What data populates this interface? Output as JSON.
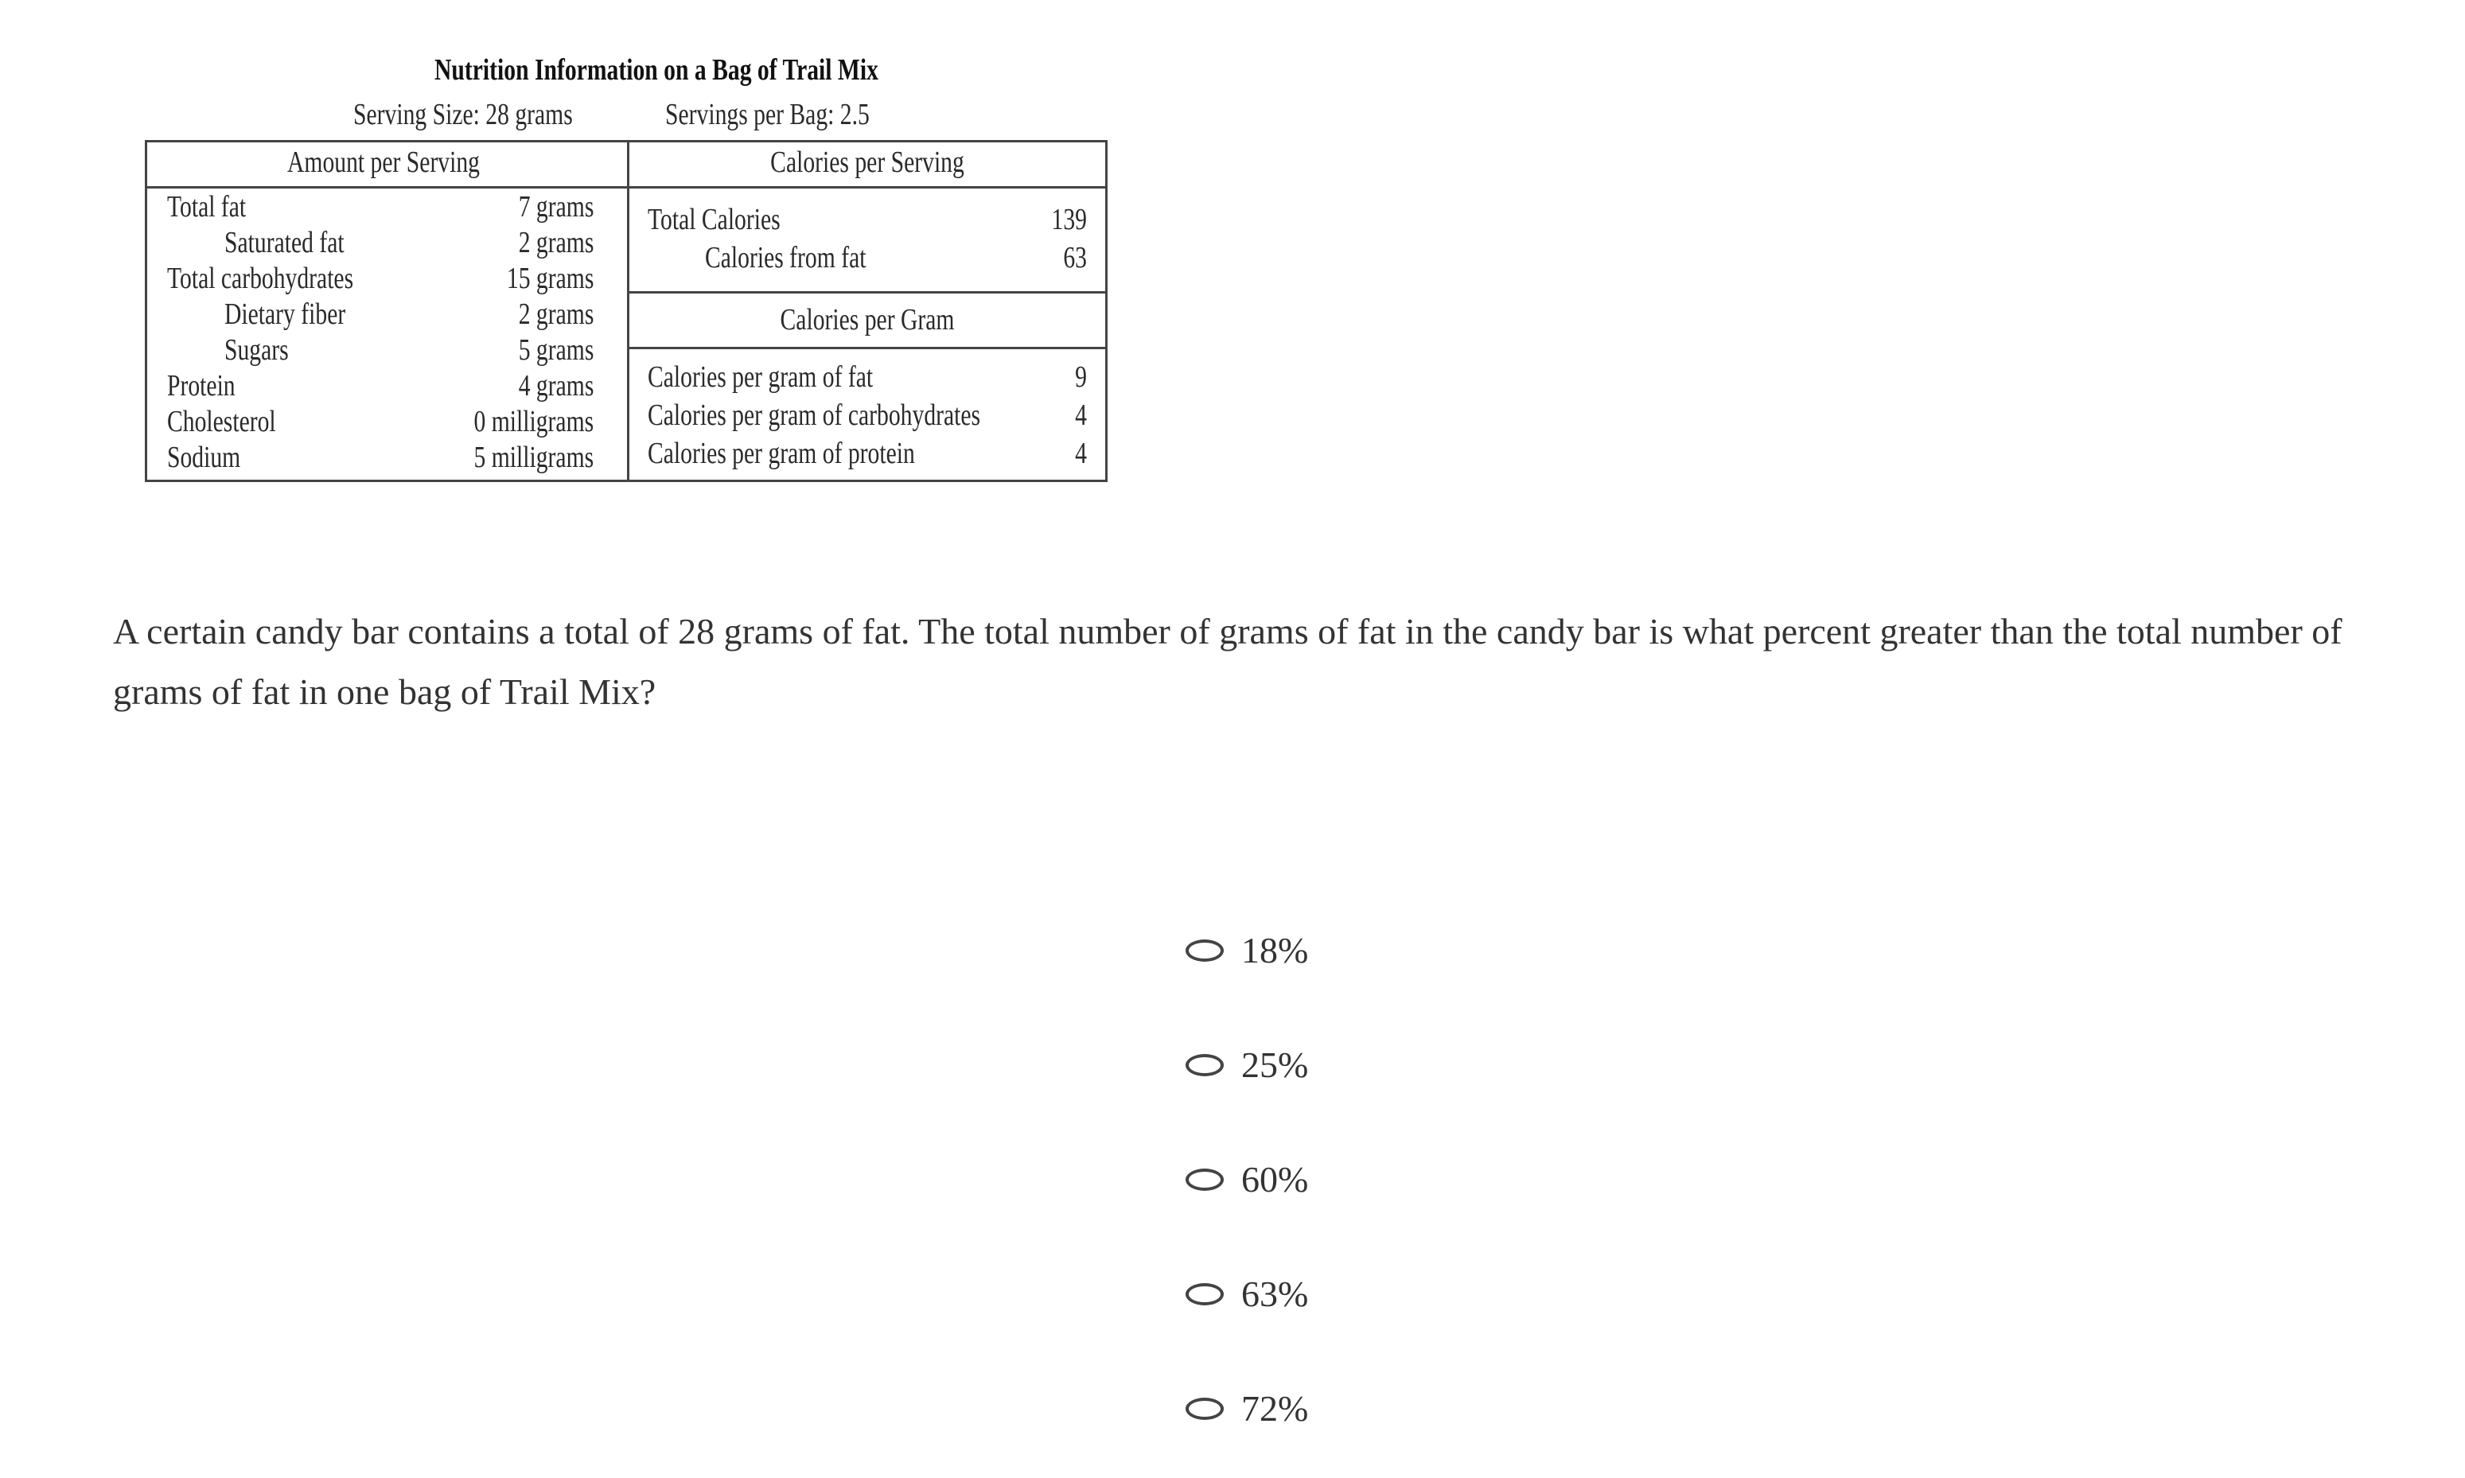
{
  "table": {
    "title": "Nutrition Information on a Bag of Trail Mix",
    "serving_size": "Serving Size: 28 grams",
    "servings_per_bag": "Servings per Bag: 2.5",
    "left_header": "Amount per Serving",
    "left_rows": [
      {
        "label": "Total fat",
        "value": "7 grams",
        "indent": false
      },
      {
        "label": "Saturated fat",
        "value": "2 grams",
        "indent": true
      },
      {
        "label": "Total carbohydrates",
        "value": "15 grams",
        "indent": false
      },
      {
        "label": "Dietary fiber",
        "value": "2 grams",
        "indent": true
      },
      {
        "label": "Sugars",
        "value": "5 grams",
        "indent": true
      },
      {
        "label": "Protein",
        "value": "4 grams",
        "indent": false
      },
      {
        "label": "Cholesterol",
        "value": "0 milligrams",
        "indent": false
      },
      {
        "label": "Sodium",
        "value": "5 milligrams",
        "indent": false
      }
    ],
    "right_header_1": "Calories per Serving",
    "calorie_rows": [
      {
        "label": "Total Calories",
        "value": "139"
      },
      {
        "label": "Calories from fat",
        "value": "63"
      }
    ],
    "right_header_2": "Calories per Gram",
    "per_gram_rows": [
      {
        "label": "Calories per gram of fat",
        "value": "9"
      },
      {
        "label": "Calories per gram of carbohydrates",
        "value": "4"
      },
      {
        "label": "Calories per gram of protein",
        "value": "4"
      }
    ]
  },
  "question": "A certain candy bar contains a total of 28 grams of fat. The total number of grams of fat in the candy bar is what percent greater than the total number of grams of fat in one bag of Trail Mix?",
  "options": [
    "18%",
    "25%",
    "60%",
    "63%",
    "72%"
  ]
}
